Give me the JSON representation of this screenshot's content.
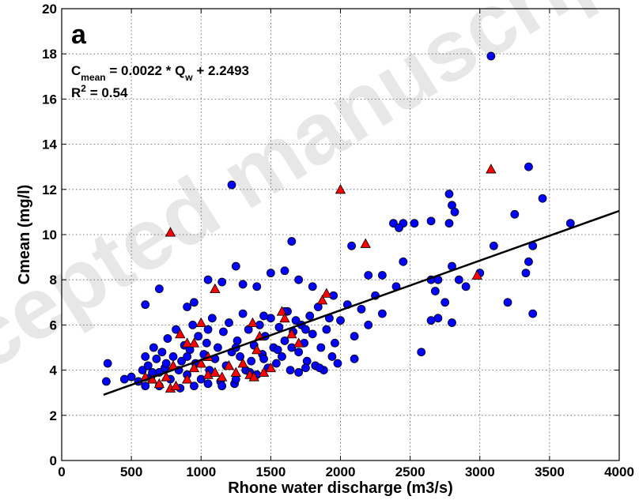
{
  "chart_data": {
    "type": "scatter",
    "watermark": "Accepted manuscript",
    "panel_label": "a",
    "equation": [
      "C",
      "mean",
      " = 0.0022 * Q",
      "w",
      " + 2.2493"
    ],
    "r_squared": [
      "R",
      "2",
      " = 0.54"
    ],
    "fit": {
      "slope": 0.0022,
      "intercept": 2.2493,
      "xrange": [
        300,
        4000
      ],
      "color": "#000000"
    },
    "x_label": "Rhone water discharge (m3/s)",
    "y_label": "Cmean (mg/l)",
    "xlim": [
      0,
      4000
    ],
    "ylim": [
      0,
      20
    ],
    "xticks": [
      0,
      500,
      1000,
      1500,
      2000,
      2500,
      3000,
      3500,
      4000
    ],
    "yticks": [
      0,
      2,
      4,
      6,
      8,
      10,
      12,
      14,
      16,
      18,
      20
    ],
    "grid": true,
    "series": [
      {
        "marker": "circle",
        "color": "#0000ff",
        "x": [
          3080,
          1220,
          3350,
          3450,
          3650,
          2780,
          2800,
          2820,
          3250,
          2650,
          2380,
          2450,
          2530,
          2420,
          2780,
          2080,
          1650,
          3100,
          3380,
          3350,
          3330,
          3380,
          3200,
          3000,
          2800,
          2850,
          2900,
          2650,
          2700,
          2680,
          2750,
          2700,
          2650,
          2800,
          2580,
          2450,
          2300,
          2200,
          2400,
          2250,
          2150,
          2300,
          2200,
          2100,
          2000,
          2050,
          2100,
          1950,
          1800,
          1700,
          1600,
          1500,
          1400,
          1300,
          1250,
          1150,
          1050,
          950,
          900,
          700,
          600,
          330,
          320,
          500,
          450,
          550,
          580,
          600,
          620,
          640,
          660,
          680,
          700,
          720,
          740,
          760,
          780,
          800,
          820,
          840,
          860,
          880,
          900,
          920,
          940,
          960,
          980,
          1000,
          1020,
          1040,
          1060,
          1080,
          1100,
          1120,
          1140,
          1160,
          1180,
          1200,
          1220,
          1240,
          1260,
          1280,
          1300,
          1320,
          1340,
          1360,
          1380,
          1400,
          1420,
          1440,
          1460,
          1480,
          1500,
          1520,
          1540,
          1560,
          1580,
          1600,
          1620,
          1640,
          1660,
          1680,
          1700,
          1720,
          1740,
          1760,
          1780,
          1800,
          1820,
          1840,
          1860,
          1880,
          1900,
          1920,
          1940,
          1960,
          1980,
          600,
          700,
          850,
          950,
          1050,
          1150,
          1250,
          1350,
          1450,
          1550,
          1650,
          1750,
          1450,
          1250,
          1050,
          900,
          750,
          650,
          1700,
          1850,
          1750,
          1600
        ],
        "values": [
          17.9,
          12.2,
          13,
          11.6,
          10.5,
          11.8,
          11.3,
          11,
          10.9,
          10.6,
          10.5,
          10.5,
          10.5,
          10.3,
          10.5,
          9.5,
          9.7,
          9.5,
          9.5,
          8.8,
          8.3,
          6.5,
          7,
          8.3,
          8.6,
          8,
          7.7,
          8,
          8,
          7.5,
          7,
          6.3,
          6.2,
          6.1,
          4.8,
          8.8,
          8.2,
          8.2,
          7.7,
          7.3,
          6.7,
          6.5,
          6,
          5.5,
          6.2,
          6.9,
          4.5,
          7.3,
          7.7,
          8,
          8.4,
          8.3,
          7.7,
          7.8,
          8.6,
          7.9,
          8,
          7,
          6.8,
          7.6,
          6.9,
          4.3,
          3.5,
          3.7,
          3.6,
          3.5,
          4.0,
          3.3,
          4.2,
          3.7,
          5.0,
          4.5,
          3.9,
          4.8,
          4.1,
          5.4,
          3.6,
          4.6,
          5.8,
          4.0,
          4.4,
          5.1,
          3.8,
          4.9,
          6.0,
          4.3,
          5.5,
          3.6,
          4.7,
          5.2,
          4.0,
          6.3,
          4.5,
          5.0,
          3.5,
          5.7,
          4.2,
          6.1,
          4.8,
          3.4,
          5.3,
          4.6,
          6.5,
          4.0,
          5.8,
          4.4,
          5.1,
          3.8,
          6.0,
          4.7,
          5.5,
          4.1,
          6.3,
          5.0,
          4.3,
          5.9,
          4.6,
          5.3,
          6.6,
          4.0,
          5.7,
          6.2,
          4.8,
          6.0,
          5.2,
          4.4,
          6.4,
          5.6,
          4.2,
          6.8,
          5.0,
          4.0,
          5.8,
          6.3,
          4.6,
          5.2,
          4.3,
          4.6,
          3.3,
          3.2,
          3.3,
          3.4,
          3.3,
          3.6,
          3.9,
          4.5,
          4.9,
          5.0,
          4.1,
          6.4,
          5.0,
          5.8,
          4.6,
          4.3,
          3.9,
          3.9,
          4.1,
          5.8,
          6.6
        ]
      },
      {
        "marker": "triangle",
        "color": "#ff0000",
        "x": [
          780,
          2000,
          3080,
          2180,
          1100,
          1900,
          1870,
          1000,
          1370,
          1580,
          1600,
          2980,
          850,
          900,
          950,
          1000,
          800,
          750,
          700,
          780,
          820,
          900,
          1050,
          1100,
          1150,
          1200,
          1300,
          1350,
          1400,
          1450,
          1500,
          1420,
          1700,
          1650,
          1050,
          950,
          650,
          600,
          1250,
          1380
        ],
        "values": [
          10.1,
          12,
          12.9,
          9.6,
          7.6,
          7.4,
          7.1,
          6.1,
          6.1,
          6.6,
          6.3,
          8.2,
          5.6,
          5.2,
          5.2,
          4.3,
          4.2,
          3.7,
          3.4,
          3.2,
          3.3,
          3.6,
          3.8,
          3.9,
          3.7,
          4.2,
          4.3,
          3.8,
          4.9,
          3.9,
          4.1,
          5.5,
          5.2,
          5.6,
          4.6,
          4.1,
          3.6,
          3.7,
          3.9,
          3.7
        ]
      }
    ]
  }
}
